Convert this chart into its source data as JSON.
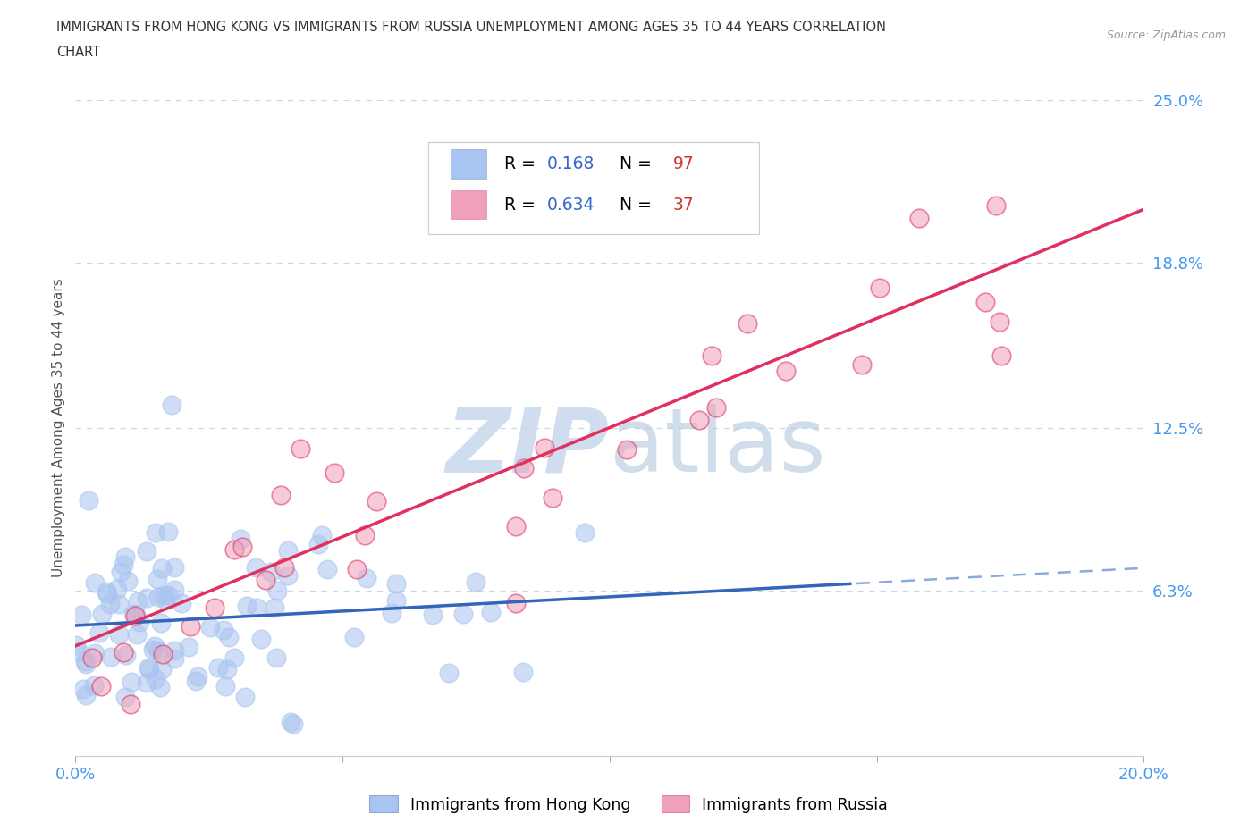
{
  "title_line1": "IMMIGRANTS FROM HONG KONG VS IMMIGRANTS FROM RUSSIA UNEMPLOYMENT AMONG AGES 35 TO 44 YEARS CORRELATION",
  "title_line2": "CHART",
  "source": "Source: ZipAtlas.com",
  "ylabel": "Unemployment Among Ages 35 to 44 years",
  "xlim": [
    0.0,
    0.2
  ],
  "ylim": [
    0.0,
    0.25
  ],
  "hk_R": 0.168,
  "hk_N": 97,
  "ru_R": 0.634,
  "ru_N": 37,
  "hk_color": "#a8c4f0",
  "ru_color": "#f0a0b8",
  "hk_line_solid_color": "#3366bb",
  "hk_line_dash_color": "#88aadd",
  "ru_line_color": "#e03060",
  "title_color": "#333333",
  "tick_label_color": "#4499ee",
  "grid_color": "#c8d8e8",
  "background_color": "#ffffff",
  "source_color": "#999999",
  "ylabel_color": "#555555",
  "legend_R_color": "#000000",
  "legend_val_color": "#3366cc",
  "legend_N_color": "#000000",
  "legend_count_color": "#cc3333"
}
